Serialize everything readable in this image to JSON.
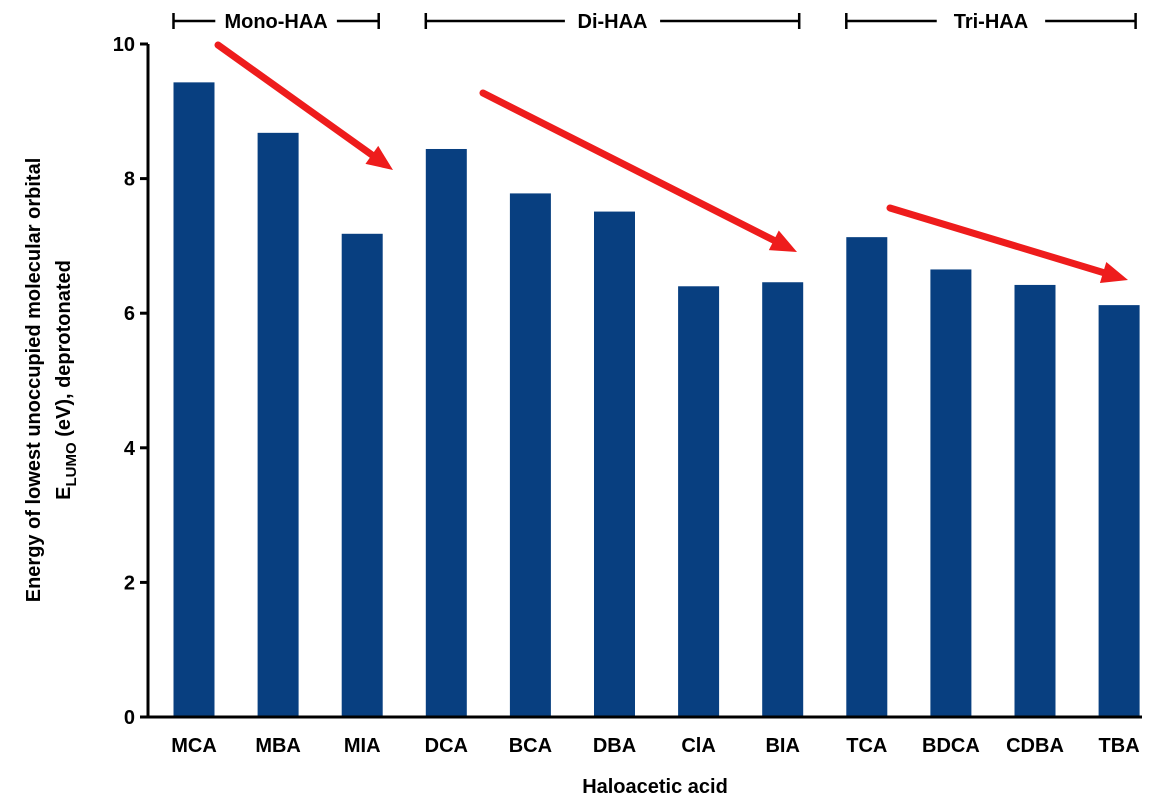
{
  "chart_data": {
    "type": "bar",
    "categories": [
      "MCA",
      "MBA",
      "MIA",
      "DCA",
      "BCA",
      "DBA",
      "ClA",
      "BIA",
      "TCA",
      "BDCA",
      "CDBA",
      "TBA"
    ],
    "values": [
      9.43,
      8.68,
      7.18,
      8.44,
      7.78,
      7.51,
      6.4,
      6.46,
      7.13,
      6.65,
      6.42,
      6.12
    ],
    "xlabel": "Haloacetic acid",
    "ylabel": {
      "line1": "Energy of lowest unoccupied molecular orbital",
      "line2_main": "E",
      "line2_sub": "LUMO",
      "line2_rest": " (eV), deprotonated"
    },
    "ylim": [
      0,
      10
    ],
    "yticks": [
      "0",
      "2",
      "4",
      "6",
      "8",
      "10"
    ],
    "groups": [
      {
        "label": "Mono-HAA",
        "start": 0,
        "end": 2
      },
      {
        "label": "Di-HAA",
        "start": 3,
        "end": 7
      },
      {
        "label": "Tri-HAA",
        "start": 8,
        "end": 11
      }
    ],
    "trend_arrows": 3,
    "grid": false,
    "legend": "none",
    "colors": {
      "bar": "#083f80",
      "arrow": "#ee1c1c",
      "axis": "#000000"
    }
  }
}
